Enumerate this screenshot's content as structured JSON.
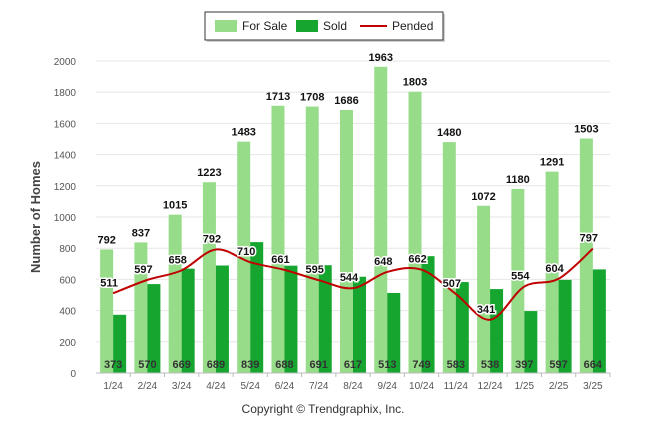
{
  "chart_data": {
    "type": "bar",
    "ylabel": "Number of Homes",
    "ylim": [
      0,
      2000
    ],
    "yticks": [
      0,
      200,
      400,
      600,
      800,
      1000,
      1200,
      1400,
      1600,
      1800,
      2000
    ],
    "grid": true,
    "legend_position": "top-center",
    "categories": [
      "1/24",
      "2/24",
      "3/24",
      "4/24",
      "5/24",
      "6/24",
      "7/24",
      "8/24",
      "9/24",
      "10/24",
      "11/24",
      "12/24",
      "1/25",
      "2/25",
      "3/25"
    ],
    "series": [
      {
        "name": "For Sale",
        "type": "bar",
        "color": "#97dc88",
        "values": [
          792,
          837,
          1015,
          1223,
          1483,
          1713,
          1708,
          1686,
          1963,
          1803,
          1480,
          1072,
          1180,
          1291,
          1503
        ]
      },
      {
        "name": "Sold",
        "type": "bar",
        "color": "#16a630",
        "values": [
          373,
          570,
          669,
          689,
          839,
          688,
          691,
          617,
          513,
          749,
          583,
          538,
          397,
          597,
          664
        ]
      },
      {
        "name": "Pended",
        "type": "line",
        "color": "#c00000",
        "values": [
          511,
          597,
          658,
          792,
          710,
          661,
          595,
          544,
          648,
          662,
          507,
          341,
          554,
          604,
          797
        ]
      }
    ]
  },
  "footer": {
    "copyright": "Copyright © Trendgraphix, Inc."
  }
}
